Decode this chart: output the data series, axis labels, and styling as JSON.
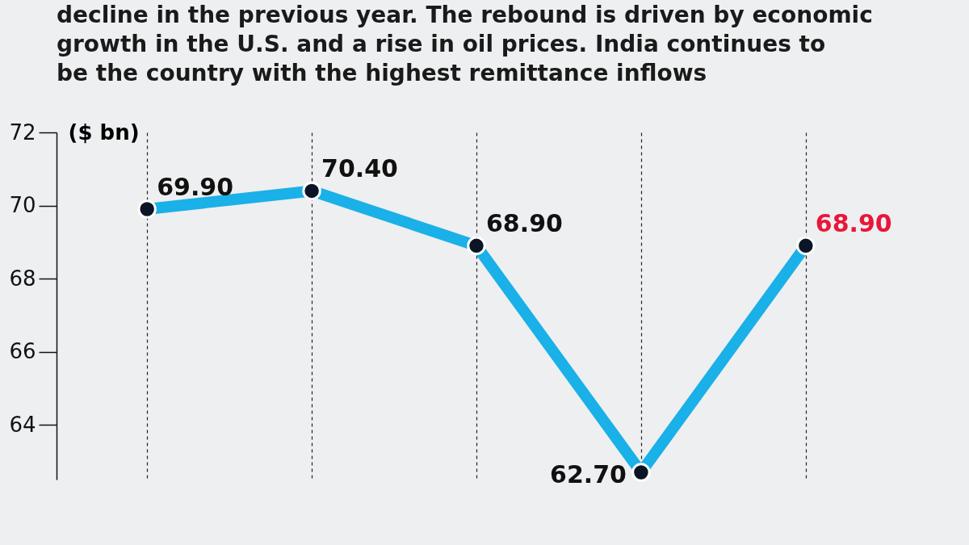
{
  "chart_data": {
    "type": "line",
    "title": "decline in the previous year. The rebound is driven by economic growth in the U.S. and a rise in oil prices. India continues to be the country with the highest remittance inflows",
    "ylabel": "($ bn)",
    "categories": [
      null,
      null,
      null,
      null,
      null
    ],
    "series": [
      {
        "color": "#1ab0e8",
        "values": [
          69.9,
          70.4,
          68.9,
          62.7,
          68.9
        ]
      }
    ],
    "value_labels": [
      "69.90",
      "70.40",
      "68.90",
      "62.70",
      "68.90"
    ],
    "ylim": [
      62.5,
      72
    ],
    "yticks": [
      64,
      66,
      68,
      70,
      72
    ],
    "grid": "x",
    "tick_labels": "y",
    "marker": "circle",
    "line_style": "solid"
  }
}
